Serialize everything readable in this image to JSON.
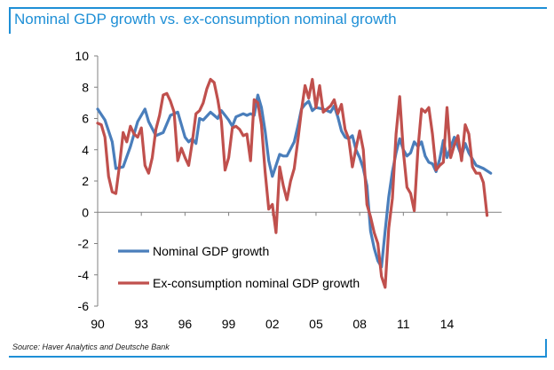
{
  "title": "Nominal GDP growth vs. ex-consumption nominal growth",
  "source": "Source: Haver Analytics and Deutsche Bank",
  "chart_data": {
    "type": "line",
    "title": "Nominal GDP growth vs. ex-consumption nominal growth",
    "xlabel": "",
    "ylabel": "",
    "xlim": [
      1990.0,
      2017.75
    ],
    "ylim": [
      -6,
      10
    ],
    "yticks": [
      -6,
      -4,
      -2,
      0,
      2,
      4,
      6,
      8,
      10
    ],
    "xticks": [
      1990,
      1993,
      1996,
      1999,
      2002,
      2005,
      2008,
      2011,
      2014
    ],
    "xtick_labels": [
      "90",
      "93",
      "96",
      "99",
      "02",
      "05",
      "08",
      "11",
      "14"
    ],
    "grid": false,
    "legend_position": "lower-left",
    "series": [
      {
        "name": "Nominal GDP growth",
        "color": "#4a7ebb",
        "points": [
          [
            1990.0,
            6.6
          ],
          [
            1990.5,
            5.9
          ],
          [
            1991.0,
            4.5
          ],
          [
            1991.25,
            2.8
          ],
          [
            1991.75,
            2.9
          ],
          [
            1992.25,
            4.2
          ],
          [
            1992.75,
            5.8
          ],
          [
            1993.25,
            6.6
          ],
          [
            1993.5,
            5.8
          ],
          [
            1994.0,
            4.9
          ],
          [
            1994.5,
            5.1
          ],
          [
            1995.0,
            6.2
          ],
          [
            1995.5,
            6.4
          ],
          [
            1996.0,
            4.8
          ],
          [
            1996.25,
            4.5
          ],
          [
            1996.5,
            4.7
          ],
          [
            1996.75,
            4.4
          ],
          [
            1997.0,
            6.0
          ],
          [
            1997.25,
            5.9
          ],
          [
            1997.75,
            6.4
          ],
          [
            1998.25,
            6.0
          ],
          [
            1998.5,
            6.5
          ],
          [
            1999.0,
            5.9
          ],
          [
            1999.25,
            5.5
          ],
          [
            1999.5,
            6.1
          ],
          [
            2000.0,
            6.3
          ],
          [
            2000.25,
            6.2
          ],
          [
            2000.5,
            6.3
          ],
          [
            2000.75,
            6.2
          ],
          [
            2001.0,
            7.5
          ],
          [
            2001.25,
            6.7
          ],
          [
            2001.5,
            5.2
          ],
          [
            2001.75,
            3.3
          ],
          [
            2002.0,
            2.3
          ],
          [
            2002.25,
            3.0
          ],
          [
            2002.5,
            3.7
          ],
          [
            2002.75,
            3.6
          ],
          [
            2003.0,
            3.6
          ],
          [
            2003.5,
            4.5
          ],
          [
            2003.75,
            5.5
          ],
          [
            2004.0,
            6.6
          ],
          [
            2004.25,
            6.9
          ],
          [
            2004.5,
            7.1
          ],
          [
            2004.75,
            6.5
          ],
          [
            2005.0,
            6.7
          ],
          [
            2005.5,
            6.6
          ],
          [
            2006.0,
            6.4
          ],
          [
            2006.25,
            6.8
          ],
          [
            2006.5,
            6.1
          ],
          [
            2006.75,
            5.2
          ],
          [
            2007.0,
            4.8
          ],
          [
            2007.25,
            4.7
          ],
          [
            2007.5,
            4.9
          ],
          [
            2007.75,
            4.0
          ],
          [
            2008.0,
            3.5
          ],
          [
            2008.25,
            2.8
          ],
          [
            2008.5,
            1.7
          ],
          [
            2008.75,
            -1.2
          ],
          [
            2009.0,
            -2.3
          ],
          [
            2009.25,
            -3.1
          ],
          [
            2009.5,
            -3.5
          ],
          [
            2009.75,
            -1.2
          ],
          [
            2010.0,
            1.0
          ],
          [
            2010.25,
            2.6
          ],
          [
            2010.5,
            3.8
          ],
          [
            2010.75,
            4.7
          ],
          [
            2011.0,
            4.0
          ],
          [
            2011.25,
            3.6
          ],
          [
            2011.5,
            3.8
          ],
          [
            2011.75,
            4.5
          ],
          [
            2012.0,
            4.2
          ],
          [
            2012.25,
            4.5
          ],
          [
            2012.5,
            3.6
          ],
          [
            2012.75,
            3.2
          ],
          [
            2013.0,
            3.1
          ],
          [
            2013.25,
            2.6
          ],
          [
            2013.5,
            3.4
          ],
          [
            2013.75,
            4.6
          ],
          [
            2014.0,
            3.5
          ],
          [
            2014.5,
            4.8
          ],
          [
            2015.0,
            3.6
          ],
          [
            2015.25,
            4.4
          ],
          [
            2015.5,
            3.8
          ],
          [
            2016.0,
            3.0
          ],
          [
            2016.5,
            2.8
          ],
          [
            2017.0,
            2.5
          ]
        ]
      },
      {
        "name": "Ex-consumption nominal GDP growth",
        "color": "#c0504d",
        "points": [
          [
            1990.0,
            5.7
          ],
          [
            1990.25,
            5.6
          ],
          [
            1990.5,
            4.8
          ],
          [
            1990.75,
            2.3
          ],
          [
            1991.0,
            1.3
          ],
          [
            1991.25,
            1.2
          ],
          [
            1991.5,
            3.0
          ],
          [
            1991.75,
            5.1
          ],
          [
            1992.0,
            4.5
          ],
          [
            1992.25,
            5.5
          ],
          [
            1992.5,
            5.0
          ],
          [
            1992.75,
            4.8
          ],
          [
            1993.0,
            5.4
          ],
          [
            1993.25,
            3.0
          ],
          [
            1993.5,
            2.5
          ],
          [
            1993.75,
            3.5
          ],
          [
            1994.0,
            5.3
          ],
          [
            1994.25,
            6.2
          ],
          [
            1994.5,
            7.5
          ],
          [
            1994.75,
            7.6
          ],
          [
            1995.0,
            7.1
          ],
          [
            1995.25,
            6.4
          ],
          [
            1995.5,
            3.3
          ],
          [
            1995.75,
            4.1
          ],
          [
            1996.0,
            3.5
          ],
          [
            1996.25,
            3.0
          ],
          [
            1996.5,
            4.5
          ],
          [
            1996.75,
            6.3
          ],
          [
            1997.0,
            6.5
          ],
          [
            1997.25,
            7.0
          ],
          [
            1997.5,
            7.9
          ],
          [
            1997.75,
            8.5
          ],
          [
            1998.0,
            8.3
          ],
          [
            1998.25,
            7.2
          ],
          [
            1998.5,
            5.8
          ],
          [
            1998.75,
            2.7
          ],
          [
            1999.0,
            3.5
          ],
          [
            1999.25,
            5.4
          ],
          [
            1999.5,
            5.5
          ],
          [
            1999.75,
            5.3
          ],
          [
            2000.0,
            4.9
          ],
          [
            2000.25,
            5.0
          ],
          [
            2000.5,
            3.3
          ],
          [
            2000.75,
            7.2
          ],
          [
            2001.0,
            7.0
          ],
          [
            2001.25,
            5.6
          ],
          [
            2001.5,
            2.6
          ],
          [
            2001.75,
            0.2
          ],
          [
            2002.0,
            0.5
          ],
          [
            2002.25,
            -1.3
          ],
          [
            2002.5,
            2.9
          ],
          [
            2002.75,
            1.7
          ],
          [
            2003.0,
            0.8
          ],
          [
            2003.25,
            2.0
          ],
          [
            2003.5,
            2.8
          ],
          [
            2003.75,
            4.6
          ],
          [
            2004.0,
            6.5
          ],
          [
            2004.25,
            8.1
          ],
          [
            2004.5,
            7.3
          ],
          [
            2004.75,
            8.5
          ],
          [
            2005.0,
            6.7
          ],
          [
            2005.25,
            8.1
          ],
          [
            2005.5,
            6.4
          ],
          [
            2005.75,
            6.6
          ],
          [
            2006.0,
            6.8
          ],
          [
            2006.25,
            7.2
          ],
          [
            2006.5,
            6.3
          ],
          [
            2006.75,
            6.9
          ],
          [
            2007.0,
            5.3
          ],
          [
            2007.25,
            4.7
          ],
          [
            2007.5,
            2.9
          ],
          [
            2007.75,
            4.1
          ],
          [
            2008.0,
            5.2
          ],
          [
            2008.25,
            4.0
          ],
          [
            2008.5,
            0.5
          ],
          [
            2008.75,
            -0.3
          ],
          [
            2009.0,
            -1.3
          ],
          [
            2009.25,
            -2.0
          ],
          [
            2009.5,
            -4.1
          ],
          [
            2009.75,
            -4.8
          ],
          [
            2010.0,
            -1.0
          ],
          [
            2010.25,
            0.9
          ],
          [
            2010.5,
            5.0
          ],
          [
            2010.75,
            7.4
          ],
          [
            2011.0,
            3.9
          ],
          [
            2011.25,
            1.6
          ],
          [
            2011.5,
            1.2
          ],
          [
            2011.75,
            0.1
          ],
          [
            2012.0,
            4.0
          ],
          [
            2012.25,
            6.6
          ],
          [
            2012.5,
            6.4
          ],
          [
            2012.75,
            6.7
          ],
          [
            2013.0,
            5.0
          ],
          [
            2013.25,
            2.7
          ],
          [
            2013.5,
            3.0
          ],
          [
            2013.75,
            3.2
          ],
          [
            2014.0,
            6.7
          ],
          [
            2014.25,
            3.5
          ],
          [
            2014.5,
            4.3
          ],
          [
            2014.75,
            4.9
          ],
          [
            2015.0,
            3.3
          ],
          [
            2015.25,
            5.6
          ],
          [
            2015.5,
            5.0
          ],
          [
            2015.75,
            2.9
          ],
          [
            2016.0,
            2.5
          ],
          [
            2016.25,
            2.5
          ],
          [
            2016.5,
            1.9
          ],
          [
            2016.75,
            -0.2
          ]
        ]
      }
    ]
  }
}
